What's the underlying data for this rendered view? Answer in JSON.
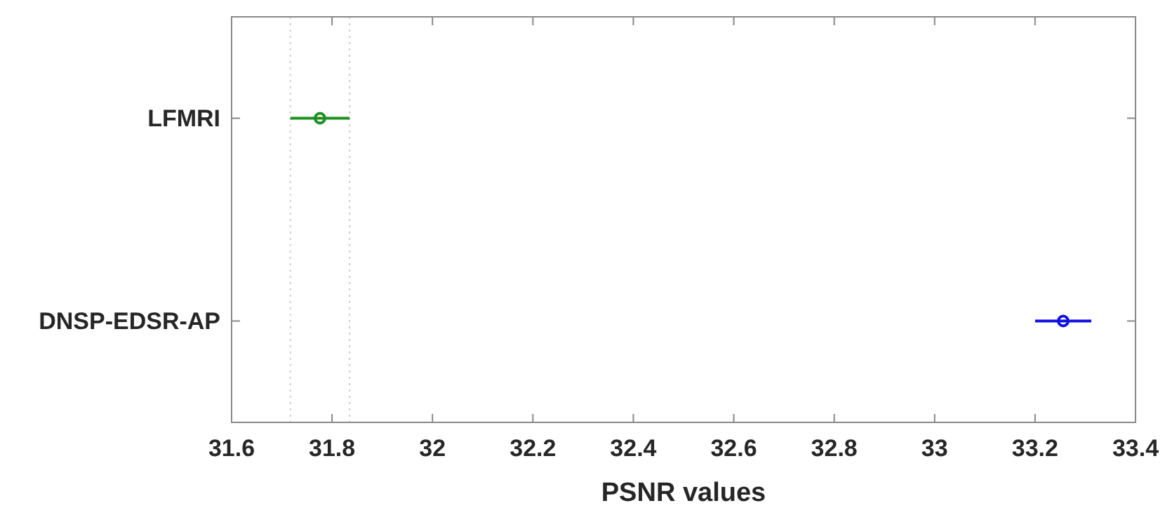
{
  "chart_data": {
    "type": "scatter",
    "orientation": "horizontal",
    "xlabel": "PSNR values",
    "categories": [
      "LFMRI",
      "DNSP-EDSR-AP"
    ],
    "values": [
      31.776,
      33.256
    ],
    "errors": [
      [
        31.717,
        31.835
      ],
      [
        33.2,
        33.312
      ]
    ],
    "colors": [
      "#1f8f1f",
      "#1010e0"
    ],
    "marker": "circle",
    "grid": false,
    "xlim": [
      31.6,
      33.4
    ],
    "xticks": [
      31.6,
      31.8,
      32,
      32.2,
      32.4,
      32.6,
      32.8,
      33,
      33.2,
      33.4
    ],
    "ref_lines": [
      {
        "axis": "x",
        "value": 31.717,
        "color": "#d0d0d0",
        "line_style": "dotted"
      },
      {
        "axis": "x",
        "value": 31.835,
        "color": "#cccccc",
        "line_style": "dotted"
      }
    ]
  }
}
